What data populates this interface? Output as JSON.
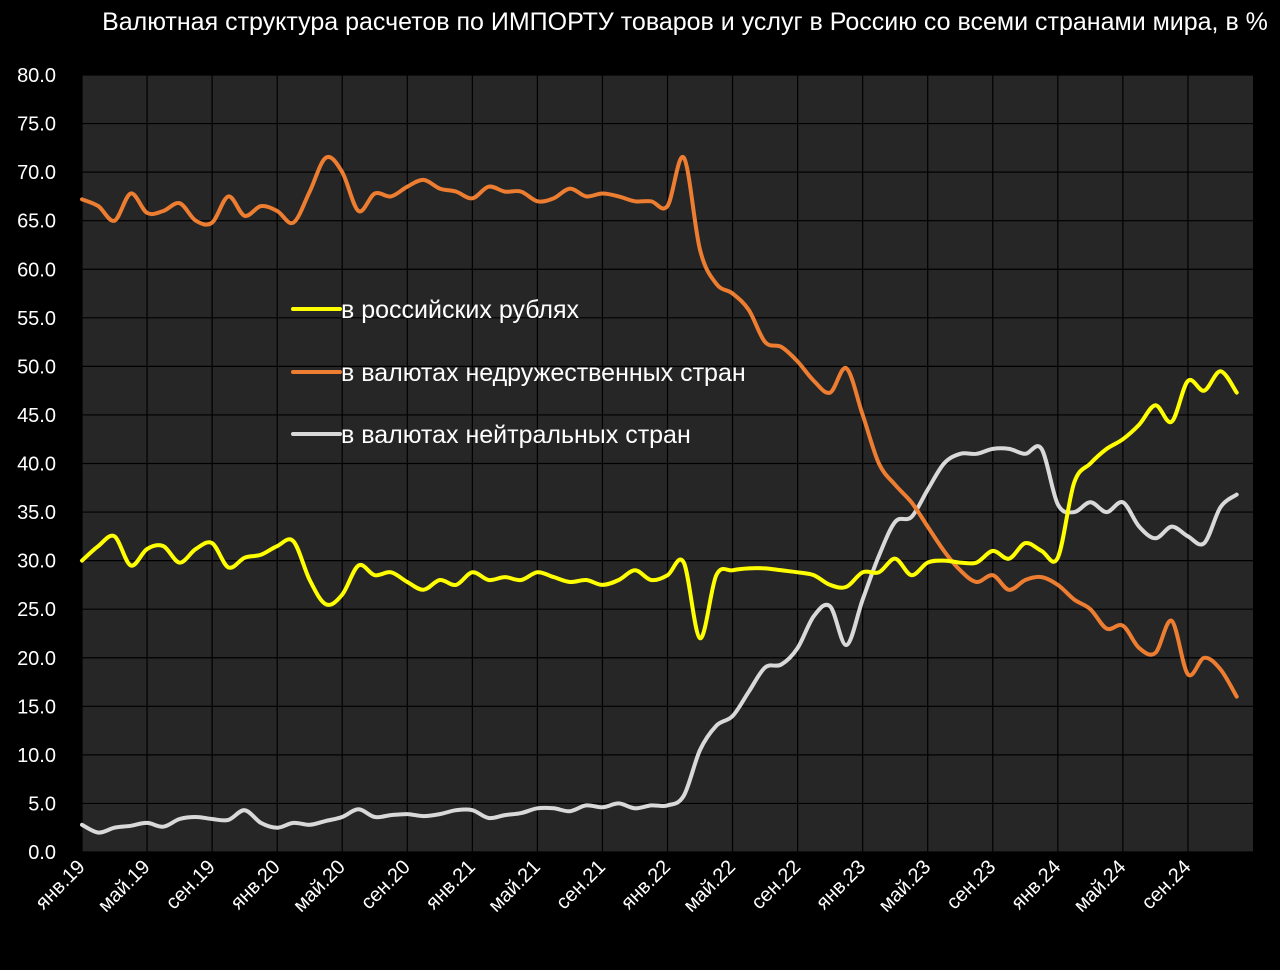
{
  "chart_data": {
    "type": "line",
    "title": "Валютная структура расчетов по ИМПОРТУ товаров и услуг в Россию со всеми странами мира, в %",
    "xlabel": "",
    "ylabel": "",
    "ylim": [
      0,
      80
    ],
    "ytick_step": 5,
    "ytick_labels": [
      "0.0",
      "5.0",
      "10.0",
      "15.0",
      "20.0",
      "25.0",
      "30.0",
      "35.0",
      "40.0",
      "45.0",
      "50.0",
      "55.0",
      "60.0",
      "65.0",
      "70.0",
      "75.0",
      "80.0"
    ],
    "xtick_labels": [
      "янв.19",
      "май.19",
      "сен.19",
      "янв.20",
      "май.20",
      "сен.20",
      "янв.21",
      "май.21",
      "сен.21",
      "янв.22",
      "май.22",
      "сен.22",
      "янв.23",
      "май.23",
      "сен.23",
      "янв.24",
      "май.24",
      "сен.24"
    ],
    "grid": true,
    "legend_position": "center-left",
    "background_color": "#262626",
    "x_start": "янв.19",
    "x_frequency": "monthly",
    "series": [
      {
        "name": "в российских рублях",
        "color": "#ffff00",
        "values": [
          30.0,
          31.5,
          32.5,
          29.5,
          31.2,
          31.5,
          29.8,
          31.2,
          31.8,
          29.3,
          30.3,
          30.6,
          31.5,
          32.0,
          28.0,
          25.5,
          26.5,
          29.5,
          28.5,
          28.8,
          27.8,
          27.0,
          28.0,
          27.5,
          28.8,
          28.0,
          28.3,
          28.0,
          28.8,
          28.3,
          27.8,
          28.0,
          27.5,
          28.0,
          29.0,
          28.0,
          28.5,
          29.8,
          22.0,
          28.5,
          29.0,
          29.2,
          29.2,
          29.0,
          28.8,
          28.5,
          27.5,
          27.3,
          28.8,
          28.8,
          30.2,
          28.5,
          29.8,
          30.0,
          29.8,
          29.8,
          31.0,
          30.2,
          31.8,
          31.0,
          30.3,
          38.0,
          40.0,
          41.5,
          42.5,
          44.0,
          46.0,
          44.3,
          48.5,
          47.5,
          49.5,
          47.3
        ]
      },
      {
        "name": "в валютах недружественных стран",
        "color": "#ed7d31",
        "values": [
          67.2,
          66.5,
          65.0,
          67.8,
          65.8,
          66.0,
          66.8,
          65.0,
          64.8,
          67.5,
          65.5,
          66.5,
          66.0,
          64.8,
          68.0,
          71.5,
          70.0,
          66.0,
          67.8,
          67.5,
          68.5,
          69.2,
          68.3,
          68.0,
          67.3,
          68.5,
          68.0,
          68.0,
          67.0,
          67.3,
          68.3,
          67.5,
          67.8,
          67.5,
          67.0,
          67.0,
          66.5,
          71.5,
          62.0,
          58.5,
          57.5,
          55.8,
          52.5,
          52.0,
          50.5,
          48.5,
          47.3,
          49.8,
          45.0,
          40.0,
          37.8,
          36.0,
          33.5,
          31.0,
          29.0,
          27.8,
          28.5,
          27.0,
          28.0,
          28.3,
          27.5,
          26.0,
          25.0,
          23.0,
          23.3,
          21.0,
          20.5,
          23.8,
          18.3,
          20.0,
          18.8,
          16.0
        ]
      },
      {
        "name": "в валютах нейтральных стран",
        "color": "#d9d9d9",
        "values": [
          2.8,
          2.0,
          2.5,
          2.7,
          3.0,
          2.6,
          3.4,
          3.6,
          3.4,
          3.3,
          4.3,
          3.0,
          2.5,
          3.0,
          2.8,
          3.2,
          3.6,
          4.4,
          3.6,
          3.8,
          3.9,
          3.7,
          3.9,
          4.3,
          4.3,
          3.5,
          3.8,
          4.0,
          4.5,
          4.5,
          4.2,
          4.8,
          4.6,
          5.0,
          4.5,
          4.8,
          4.8,
          5.8,
          10.5,
          13.0,
          14.0,
          16.5,
          19.0,
          19.3,
          21.0,
          24.3,
          25.3,
          21.3,
          26.0,
          30.5,
          34.0,
          34.5,
          37.3,
          40.0,
          41.0,
          41.0,
          41.5,
          41.5,
          41.0,
          41.5,
          35.8,
          35.0,
          36.0,
          35.0,
          36.0,
          33.5,
          32.3,
          33.5,
          32.5,
          31.8,
          35.5,
          36.8
        ]
      }
    ]
  }
}
